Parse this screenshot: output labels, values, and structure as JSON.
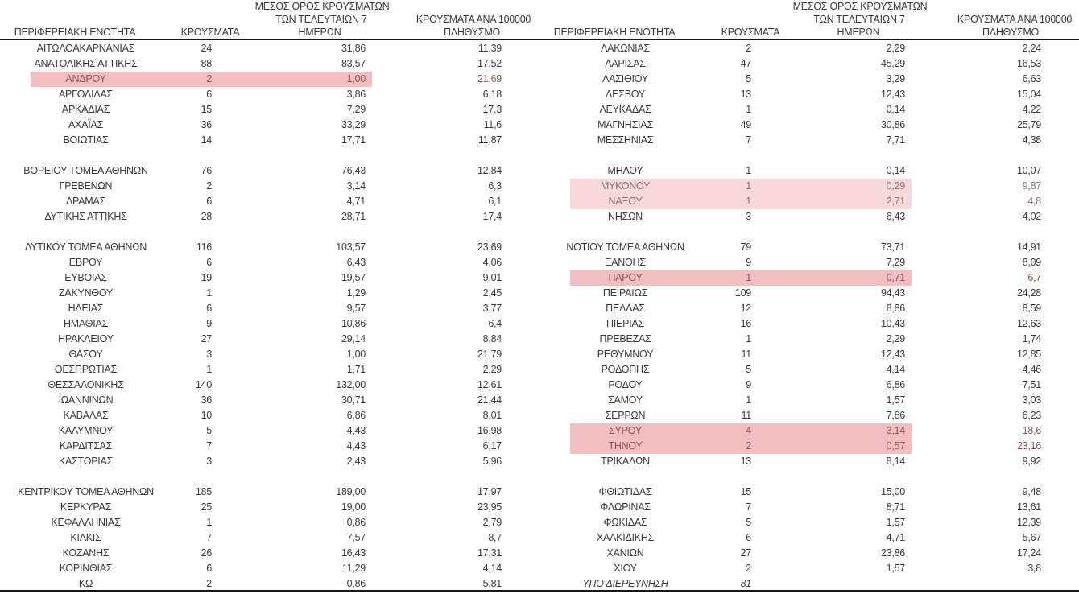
{
  "colors": {
    "highlight_dark": "#F3BEC0",
    "highlight_light": "#F8D8DB",
    "highlight_dark_text": "#8F5552",
    "highlight_light_text": "#8A7173",
    "body_text": "#3A3A3A",
    "rule": "#161616"
  },
  "headers": {
    "region": "ΠΕΡΙΦΕΡΕΙΑΚΗ ΕΝΟΤΗΤΑ",
    "cases": "ΚΡΟΥΣΜΑΤΑ",
    "avg_line1": "ΜΕΣΟΣ ΟΡΟΣ ΚΡΟΥΣΜΑΤΩΝ",
    "avg_line2": "ΤΩΝ ΤΕΛΕΥΤΑΙΩΝ 7",
    "avg_line3": "ΗΜΕΡΩΝ",
    "per100k_line1": "ΚΡΟΥΣΜΑΤΑ ΑΝΑ 100000",
    "per100k_line2": "ΠΛΗΘΥΣΜΟ"
  },
  "left_rows": [
    {
      "region": "ΑΙΤΩΛΟΑΚΑΡΝΑΝΙΑΣ",
      "cases": "24",
      "avg": "31,86",
      "per100k": "11,39",
      "hl": "none"
    },
    {
      "region": "ΑΝΑΤΟΛΙΚΗΣ ΑΤΤΙΚΗΣ",
      "cases": "88",
      "avg": "83,57",
      "per100k": "17,52",
      "hl": "none"
    },
    {
      "region": "ΑΝΔΡΟΥ",
      "cases": "2",
      "avg": "1,00",
      "per100k": "21,69",
      "hl": "dark"
    },
    {
      "region": "ΑΡΓΟΛΙΔΑΣ",
      "cases": "6",
      "avg": "3,86",
      "per100k": "6,18",
      "hl": "none"
    },
    {
      "region": "ΑΡΚΑΔΙΑΣ",
      "cases": "15",
      "avg": "7,29",
      "per100k": "17,3",
      "hl": "none"
    },
    {
      "region": "ΑΧΑΪΑΣ",
      "cases": "36",
      "avg": "33,29",
      "per100k": "11,6",
      "hl": "none"
    },
    {
      "region": "ΒΟΙΩΤΙΑΣ",
      "cases": "14",
      "avg": "17,71",
      "per100k": "11,87",
      "hl": "none"
    },
    {
      "region": "",
      "cases": "",
      "avg": "",
      "per100k": "",
      "hl": "none"
    },
    {
      "region": "ΒΟΡΕΙΟΥ ΤΟΜΕΑ ΑΘΗΝΩΝ",
      "cases": "76",
      "avg": "76,43",
      "per100k": "12,84",
      "hl": "none"
    },
    {
      "region": "ΓΡΕΒΕΝΩΝ",
      "cases": "2",
      "avg": "3,14",
      "per100k": "6,3",
      "hl": "none"
    },
    {
      "region": "ΔΡΑΜΑΣ",
      "cases": "6",
      "avg": "4,71",
      "per100k": "6,1",
      "hl": "none"
    },
    {
      "region": "ΔΥΤΙΚΗΣ ΑΤΤΙΚΗΣ",
      "cases": "28",
      "avg": "28,71",
      "per100k": "17,4",
      "hl": "none"
    },
    {
      "region": "",
      "cases": "",
      "avg": "",
      "per100k": "",
      "hl": "none"
    },
    {
      "region": "ΔΥΤΙΚΟΥ ΤΟΜΕΑ ΑΘΗΝΩΝ",
      "cases": "116",
      "avg": "103,57",
      "per100k": "23,69",
      "hl": "none"
    },
    {
      "region": "ΕΒΡΟΥ",
      "cases": "6",
      "avg": "6,43",
      "per100k": "4,06",
      "hl": "none"
    },
    {
      "region": "ΕΥΒΟΙΑΣ",
      "cases": "19",
      "avg": "19,57",
      "per100k": "9,01",
      "hl": "none"
    },
    {
      "region": "ΖΑΚΥΝΘΟΥ",
      "cases": "1",
      "avg": "1,29",
      "per100k": "2,45",
      "hl": "none"
    },
    {
      "region": "ΗΛΕΙΑΣ",
      "cases": "6",
      "avg": "9,57",
      "per100k": "3,77",
      "hl": "none"
    },
    {
      "region": "ΗΜΑΘΙΑΣ",
      "cases": "9",
      "avg": "10,86",
      "per100k": "6,4",
      "hl": "none"
    },
    {
      "region": "ΗΡΑΚΛΕΙΟΥ",
      "cases": "27",
      "avg": "29,14",
      "per100k": "8,84",
      "hl": "none"
    },
    {
      "region": "ΘΑΣΟΥ",
      "cases": "3",
      "avg": "1,00",
      "per100k": "21,79",
      "hl": "none"
    },
    {
      "region": "ΘΕΣΠΡΩΤΙΑΣ",
      "cases": "1",
      "avg": "1,71",
      "per100k": "2,29",
      "hl": "none"
    },
    {
      "region": "ΘΕΣΣΑΛΟΝΙΚΗΣ",
      "cases": "140",
      "avg": "132,00",
      "per100k": "12,61",
      "hl": "none"
    },
    {
      "region": "ΙΩΑΝΝΙΝΩΝ",
      "cases": "36",
      "avg": "30,71",
      "per100k": "21,44",
      "hl": "none"
    },
    {
      "region": "ΚΑΒΑΛΑΣ",
      "cases": "10",
      "avg": "6,86",
      "per100k": "8,01",
      "hl": "none"
    },
    {
      "region": "ΚΑΛΥΜΝΟΥ",
      "cases": "5",
      "avg": "4,43",
      "per100k": "16,98",
      "hl": "none"
    },
    {
      "region": "ΚΑΡΔΙΤΣΑΣ",
      "cases": "7",
      "avg": "4,43",
      "per100k": "6,17",
      "hl": "none"
    },
    {
      "region": "ΚΑΣΤΟΡΙΑΣ",
      "cases": "3",
      "avg": "2,43",
      "per100k": "5,96",
      "hl": "none"
    },
    {
      "region": "",
      "cases": "",
      "avg": "",
      "per100k": "",
      "hl": "none"
    },
    {
      "region": "ΚΕΝΤΡΙΚΟΥ ΤΟΜΕΑ ΑΘΗΝΩΝ",
      "cases": "185",
      "avg": "189,00",
      "per100k": "17,97",
      "hl": "none"
    },
    {
      "region": "ΚΕΡΚΥΡΑΣ",
      "cases": "25",
      "avg": "19,00",
      "per100k": "23,95",
      "hl": "none"
    },
    {
      "region": "ΚΕΦΑΛΛΗΝΙΑΣ",
      "cases": "1",
      "avg": "0,86",
      "per100k": "2,79",
      "hl": "none"
    },
    {
      "region": "ΚΙΛΚΙΣ",
      "cases": "7",
      "avg": "7,57",
      "per100k": "8,7",
      "hl": "none"
    },
    {
      "region": "ΚΟΖΑΝΗΣ",
      "cases": "26",
      "avg": "16,43",
      "per100k": "17,31",
      "hl": "none"
    },
    {
      "region": "ΚΟΡΙΝΘΙΑΣ",
      "cases": "6",
      "avg": "11,29",
      "per100k": "4,14",
      "hl": "none"
    },
    {
      "region": "ΚΩ",
      "cases": "2",
      "avg": "0,86",
      "per100k": "5,81",
      "hl": "none"
    }
  ],
  "right_rows": [
    {
      "region": "ΛΑΚΩΝΙΑΣ",
      "cases": "2",
      "avg": "2,29",
      "per100k": "2,24",
      "hl": "none"
    },
    {
      "region": "ΛΑΡΙΣΑΣ",
      "cases": "47",
      "avg": "45,29",
      "per100k": "16,53",
      "hl": "none"
    },
    {
      "region": "ΛΑΣΙΘΙΟΥ",
      "cases": "5",
      "avg": "3,29",
      "per100k": "6,63",
      "hl": "none"
    },
    {
      "region": "ΛΕΣΒΟΥ",
      "cases": "13",
      "avg": "12,43",
      "per100k": "15,04",
      "hl": "none"
    },
    {
      "region": "ΛΕΥΚΑΔΑΣ",
      "cases": "1",
      "avg": "0,14",
      "per100k": "4,22",
      "hl": "none"
    },
    {
      "region": "ΜΑΓΝΗΣΙΑΣ",
      "cases": "49",
      "avg": "30,86",
      "per100k": "25,79",
      "hl": "none"
    },
    {
      "region": "ΜΕΣΣΗΝΙΑΣ",
      "cases": "7",
      "avg": "7,71",
      "per100k": "4,38",
      "hl": "none"
    },
    {
      "region": "",
      "cases": "",
      "avg": "",
      "per100k": "",
      "hl": "none"
    },
    {
      "region": "ΜΗΛΟΥ",
      "cases": "1",
      "avg": "0,14",
      "per100k": "10,07",
      "hl": "none"
    },
    {
      "region": "ΜΥΚΟΝΟΥ",
      "cases": "1",
      "avg": "0,29",
      "per100k": "9,87",
      "hl": "light"
    },
    {
      "region": "ΝΑΞΟΥ",
      "cases": "1",
      "avg": "2,71",
      "per100k": "4,8",
      "hl": "light"
    },
    {
      "region": "ΝΗΣΩΝ",
      "cases": "3",
      "avg": "6,43",
      "per100k": "4,02",
      "hl": "none"
    },
    {
      "region": "",
      "cases": "",
      "avg": "",
      "per100k": "",
      "hl": "none"
    },
    {
      "region": "ΝΟΤΙΟΥ ΤΟΜΕΑ ΑΘΗΝΩΝ",
      "cases": "79",
      "avg": "73,71",
      "per100k": "14,91",
      "hl": "none"
    },
    {
      "region": "ΞΑΝΘΗΣ",
      "cases": "9",
      "avg": "7,29",
      "per100k": "8,09",
      "hl": "none"
    },
    {
      "region": "ΠΑΡΟΥ",
      "cases": "1",
      "avg": "0,71",
      "per100k": "6,7",
      "hl": "dark"
    },
    {
      "region": "ΠΕΙΡΑΙΩΣ",
      "cases": "109",
      "avg": "94,43",
      "per100k": "24,28",
      "hl": "none"
    },
    {
      "region": "ΠΕΛΛΑΣ",
      "cases": "12",
      "avg": "8,86",
      "per100k": "8,59",
      "hl": "none"
    },
    {
      "region": "ΠΙΕΡΙΑΣ",
      "cases": "16",
      "avg": "10,43",
      "per100k": "12,63",
      "hl": "none"
    },
    {
      "region": "ΠΡΕΒΕΖΑΣ",
      "cases": "1",
      "avg": "2,29",
      "per100k": "1,74",
      "hl": "none"
    },
    {
      "region": "ΡΕΘΥΜΝΟΥ",
      "cases": "11",
      "avg": "12,43",
      "per100k": "12,85",
      "hl": "none"
    },
    {
      "region": "ΡΟΔΟΠΗΣ",
      "cases": "5",
      "avg": "4,14",
      "per100k": "4,46",
      "hl": "none"
    },
    {
      "region": "ΡΟΔΟΥ",
      "cases": "9",
      "avg": "6,86",
      "per100k": "7,51",
      "hl": "none"
    },
    {
      "region": "ΣΑΜΟΥ",
      "cases": "1",
      "avg": "1,57",
      "per100k": "3,03",
      "hl": "none"
    },
    {
      "region": "ΣΕΡΡΩΝ",
      "cases": "11",
      "avg": "7,86",
      "per100k": "6,23",
      "hl": "none"
    },
    {
      "region": "ΣΥΡΟΥ",
      "cases": "4",
      "avg": "3,14",
      "per100k": "18,6",
      "hl": "dark"
    },
    {
      "region": "ΤΗΝΟΥ",
      "cases": "2",
      "avg": "0,57",
      "per100k": "23,16",
      "hl": "dark"
    },
    {
      "region": "ΤΡΙΚΑΛΩΝ",
      "cases": "13",
      "avg": "8,14",
      "per100k": "9,92",
      "hl": "none"
    },
    {
      "region": "",
      "cases": "",
      "avg": "",
      "per100k": "",
      "hl": "none"
    },
    {
      "region": "ΦΘΙΩΤΙΔΑΣ",
      "cases": "15",
      "avg": "15,00",
      "per100k": "9,48",
      "hl": "none"
    },
    {
      "region": "ΦΛΩΡΙΝΑΣ",
      "cases": "7",
      "avg": "8,71",
      "per100k": "13,61",
      "hl": "none"
    },
    {
      "region": "ΦΩΚΙΔΑΣ",
      "cases": "5",
      "avg": "1,57",
      "per100k": "12,39",
      "hl": "none"
    },
    {
      "region": "ΧΑΛΚΙΔΙΚΗΣ",
      "cases": "6",
      "avg": "4,71",
      "per100k": "5,67",
      "hl": "none"
    },
    {
      "region": "ΧΑΝΙΩΝ",
      "cases": "27",
      "avg": "23,86",
      "per100k": "17,24",
      "hl": "none"
    },
    {
      "region": "ΧΙΟΥ",
      "cases": "2",
      "avg": "1,57",
      "per100k": "3,8",
      "hl": "none"
    },
    {
      "region": "ΥΠΟ ΔΙΕΡΕΥΝΗΣΗ",
      "cases": "81",
      "avg": "",
      "per100k": "",
      "hl": "none",
      "italic": true
    }
  ]
}
